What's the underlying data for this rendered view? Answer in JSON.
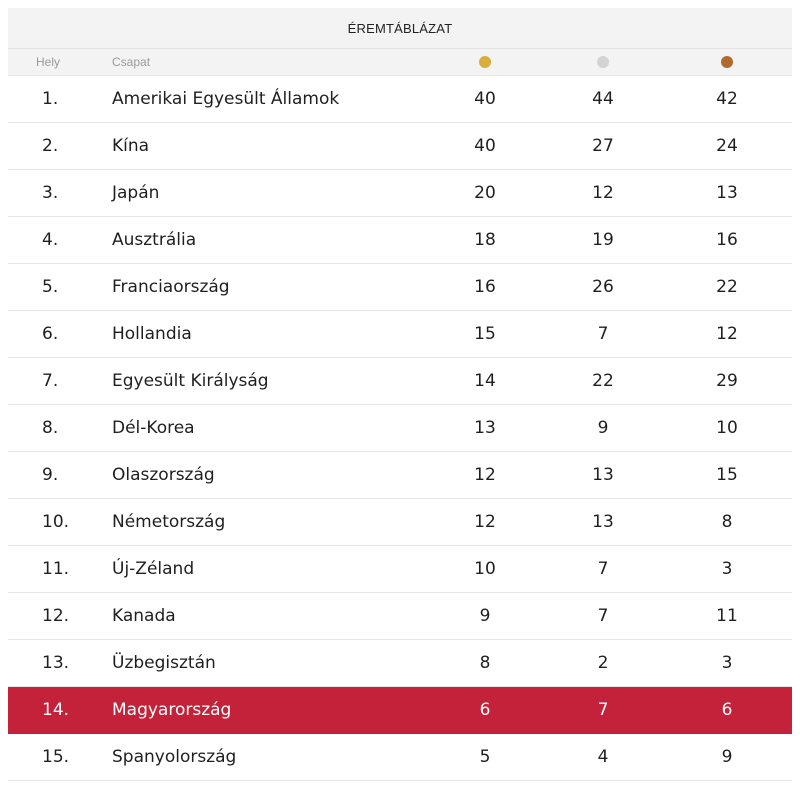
{
  "table": {
    "title": "ÉREMTÁBLÁZAT",
    "headers": {
      "rank": "Hely",
      "team": "Csapat"
    },
    "medal_colors": {
      "gold": "#d8ad3a",
      "silver": "#d3d3d3",
      "bronze": "#b06a30"
    },
    "highlight_color": "#c4213a",
    "rows": [
      {
        "rank": "1.",
        "team": "Amerikai Egyesült Államok",
        "gold": "40",
        "silver": "44",
        "bronze": "42"
      },
      {
        "rank": "2.",
        "team": "Kína",
        "gold": "40",
        "silver": "27",
        "bronze": "24"
      },
      {
        "rank": "3.",
        "team": "Japán",
        "gold": "20",
        "silver": "12",
        "bronze": "13"
      },
      {
        "rank": "4.",
        "team": "Ausztrália",
        "gold": "18",
        "silver": "19",
        "bronze": "16"
      },
      {
        "rank": "5.",
        "team": "Franciaország",
        "gold": "16",
        "silver": "26",
        "bronze": "22"
      },
      {
        "rank": "6.",
        "team": "Hollandia",
        "gold": "15",
        "silver": "7",
        "bronze": "12"
      },
      {
        "rank": "7.",
        "team": "Egyesült Királyság",
        "gold": "14",
        "silver": "22",
        "bronze": "29"
      },
      {
        "rank": "8.",
        "team": "Dél-Korea",
        "gold": "13",
        "silver": "9",
        "bronze": "10"
      },
      {
        "rank": "9.",
        "team": "Olaszország",
        "gold": "12",
        "silver": "13",
        "bronze": "15"
      },
      {
        "rank": "10.",
        "team": "Németország",
        "gold": "12",
        "silver": "13",
        "bronze": "8"
      },
      {
        "rank": "11.",
        "team": "Új-Zéland",
        "gold": "10",
        "silver": "7",
        "bronze": "3"
      },
      {
        "rank": "12.",
        "team": "Kanada",
        "gold": "9",
        "silver": "7",
        "bronze": "11"
      },
      {
        "rank": "13.",
        "team": "Üzbegisztán",
        "gold": "8",
        "silver": "2",
        "bronze": "3"
      },
      {
        "rank": "14.",
        "team": "Magyarország",
        "gold": "6",
        "silver": "7",
        "bronze": "6",
        "highlighted": true
      },
      {
        "rank": "15.",
        "team": "Spanyolország",
        "gold": "5",
        "silver": "4",
        "bronze": "9"
      }
    ]
  }
}
